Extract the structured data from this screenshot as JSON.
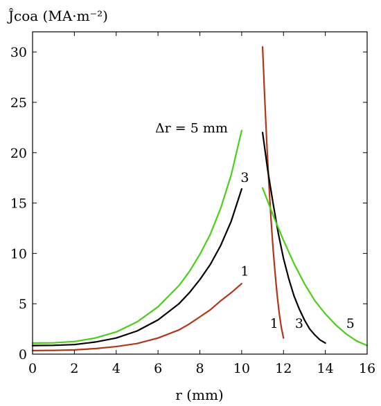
{
  "chart_data": {
    "type": "line",
    "title": "",
    "ylabel": "Ĵcoa (MA·m⁻²)",
    "xlabel": "r (mm)",
    "xlim": [
      0,
      16
    ],
    "ylim": [
      0,
      32
    ],
    "xticks": [
      0,
      2,
      4,
      6,
      8,
      10,
      12,
      14,
      16
    ],
    "yticks": [
      0,
      5,
      10,
      15,
      20,
      25,
      30
    ],
    "grid": false,
    "legend": "none",
    "annotations": [
      {
        "text": "Δr = 5 mm",
        "x": 7.6,
        "y": 22.0
      },
      {
        "text": "3",
        "x": 10.15,
        "y": 17.1
      },
      {
        "text": "1",
        "x": 10.15,
        "y": 7.8
      },
      {
        "text": "1",
        "x": 11.55,
        "y": 2.6
      },
      {
        "text": "3",
        "x": 12.75,
        "y": 2.6
      },
      {
        "text": "5",
        "x": 15.2,
        "y": 2.6
      }
    ],
    "series": [
      {
        "color": "#b0361a",
        "x": [
          0,
          1,
          2,
          3,
          4,
          5,
          6,
          7,
          7.5,
          8,
          8.5,
          9,
          9.5,
          10
        ],
        "y": [
          0.35,
          0.37,
          0.42,
          0.55,
          0.75,
          1.05,
          1.6,
          2.4,
          3.0,
          3.7,
          4.4,
          5.3,
          6.1,
          7.0
        ]
      },
      {
        "color": "#b0361a",
        "x": [
          11,
          11.1,
          11.2,
          11.3,
          11.4,
          11.5,
          11.6,
          11.7,
          11.8,
          11.9,
          12
        ],
        "y": [
          30.5,
          25.5,
          21.0,
          17.0,
          13.5,
          10.5,
          8.0,
          5.8,
          4.0,
          2.6,
          1.6
        ]
      },
      {
        "color": "#000000",
        "x": [
          0,
          1,
          2,
          3,
          4,
          5,
          6,
          7,
          7.5,
          8,
          8.5,
          9,
          9.5,
          10
        ],
        "y": [
          0.85,
          0.87,
          0.95,
          1.2,
          1.6,
          2.3,
          3.4,
          5.0,
          6.1,
          7.4,
          8.9,
          10.8,
          13.2,
          16.4
        ]
      },
      {
        "color": "#000000",
        "x": [
          11,
          11.25,
          11.5,
          11.75,
          12,
          12.25,
          12.5,
          12.75,
          13,
          13.25,
          13.5,
          13.75,
          14
        ],
        "y": [
          22.0,
          18.2,
          15.0,
          12.0,
          9.5,
          7.5,
          5.8,
          4.5,
          3.4,
          2.5,
          1.9,
          1.4,
          1.1
        ]
      },
      {
        "color": "#4ccd1a",
        "x": [
          0,
          1,
          2,
          3,
          4,
          5,
          6,
          7,
          7.5,
          8,
          8.5,
          9,
          9.5,
          10
        ],
        "y": [
          1.1,
          1.12,
          1.25,
          1.6,
          2.2,
          3.2,
          4.7,
          6.8,
          8.2,
          9.9,
          11.9,
          14.5,
          17.8,
          22.2
        ]
      },
      {
        "color": "#4ccd1a",
        "x": [
          11,
          11.5,
          12,
          12.5,
          13,
          13.5,
          14,
          14.5,
          15,
          15.5,
          16
        ],
        "y": [
          16.5,
          13.8,
          11.3,
          9.0,
          7.0,
          5.3,
          4.0,
          2.9,
          2.0,
          1.3,
          0.85
        ]
      }
    ]
  }
}
